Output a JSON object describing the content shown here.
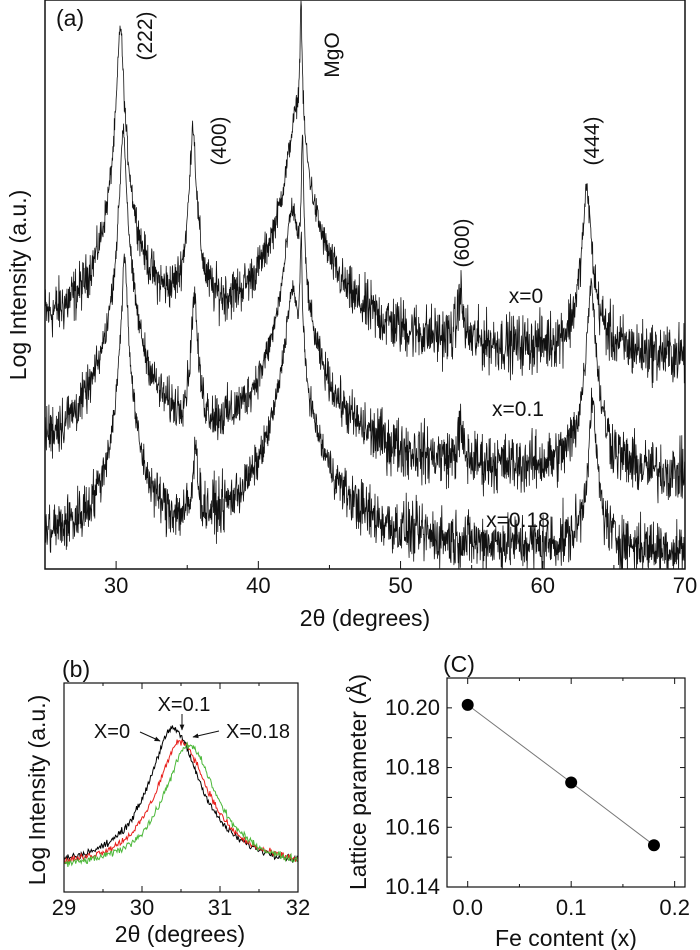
{
  "chart_data": [
    {
      "panel_label": "(a)",
      "type": "line",
      "xlabel": "2θ (degrees)",
      "ylabel": "Log Intensity (a.u.)",
      "xlim": [
        25,
        70
      ],
      "ylim": [
        0,
        100
      ],
      "xticks": [
        "30",
        "40",
        "50",
        "60",
        "70"
      ],
      "grid": false,
      "series": [
        {
          "name": "x=0",
          "baseline": [
            41,
            37
          ],
          "peaks": [
            {
              "pos": 30.3,
              "height": 55,
              "width": 0.15
            },
            {
              "pos": 35.4,
              "height": 38,
              "width": 0.15
            },
            {
              "pos": 42.7,
              "height": 40,
              "width": 0.5
            },
            {
              "pos": 43.0,
              "height": 60,
              "width": 0.05
            },
            {
              "pos": 54.2,
              "height": 10,
              "width": 0.15
            },
            {
              "pos": 63.1,
              "height": 29,
              "width": 0.22
            }
          ]
        },
        {
          "name": "x=0.1",
          "baseline": [
            19,
            16
          ],
          "peaks": [
            {
              "pos": 30.5,
              "height": 59,
              "width": 0.15
            },
            {
              "pos": 35.5,
              "height": 30,
              "width": 0.15
            },
            {
              "pos": 42.4,
              "height": 45,
              "width": 0.4
            },
            {
              "pos": 43.1,
              "height": 59,
              "width": 0.05
            },
            {
              "pos": 54.2,
              "height": 7,
              "width": 0.15
            },
            {
              "pos": 63.4,
              "height": 34,
              "width": 0.2
            }
          ]
        },
        {
          "name": "x=0.18",
          "baseline": [
            4,
            3
          ],
          "peaks": [
            {
              "pos": 30.6,
              "height": 51,
              "width": 0.15
            },
            {
              "pos": 35.6,
              "height": 18,
              "width": 0.12
            },
            {
              "pos": 42.4,
              "height": 45,
              "width": 0.4
            },
            {
              "pos": 43.0,
              "height": 55,
              "width": 0.05
            },
            {
              "pos": 63.5,
              "height": 26,
              "width": 0.2
            }
          ]
        }
      ],
      "peak_labels": [
        "(222)",
        "(400)",
        "MgO",
        "(600)",
        "(444)"
      ]
    },
    {
      "panel_label": "(b)",
      "type": "line",
      "xlabel": "2θ (degrees)",
      "ylabel": "Log Intensity (a.u.)",
      "xlim": [
        29,
        32
      ],
      "ylim": [
        0,
        100
      ],
      "xticks": [
        "29",
        "30",
        "31",
        "32"
      ],
      "series": [
        {
          "name": "X=0",
          "color": "#000000",
          "peak": 30.4,
          "height": 67,
          "baseline": 11
        },
        {
          "name": "X=0.1",
          "color": "#e8201c",
          "peak": 30.5,
          "height": 61,
          "baseline": 11
        },
        {
          "name": "X=0.18",
          "color": "#4cb83a",
          "peak": 30.6,
          "height": 60,
          "baseline": 10
        }
      ]
    },
    {
      "panel_label": "(C)",
      "type": "scatter",
      "xlabel": "Fe content (x)",
      "ylabel": "Lattice parameter (Å)",
      "xlim": [
        -0.02,
        0.21
      ],
      "ylim": [
        10.14,
        10.21
      ],
      "xticks": [
        "0.0",
        "0.1",
        "0.2"
      ],
      "yticks": [
        "10.14",
        "10.16",
        "10.18",
        "10.20"
      ],
      "x": [
        0.0,
        0.1,
        0.18
      ],
      "y": [
        10.201,
        10.175,
        10.154
      ]
    }
  ]
}
